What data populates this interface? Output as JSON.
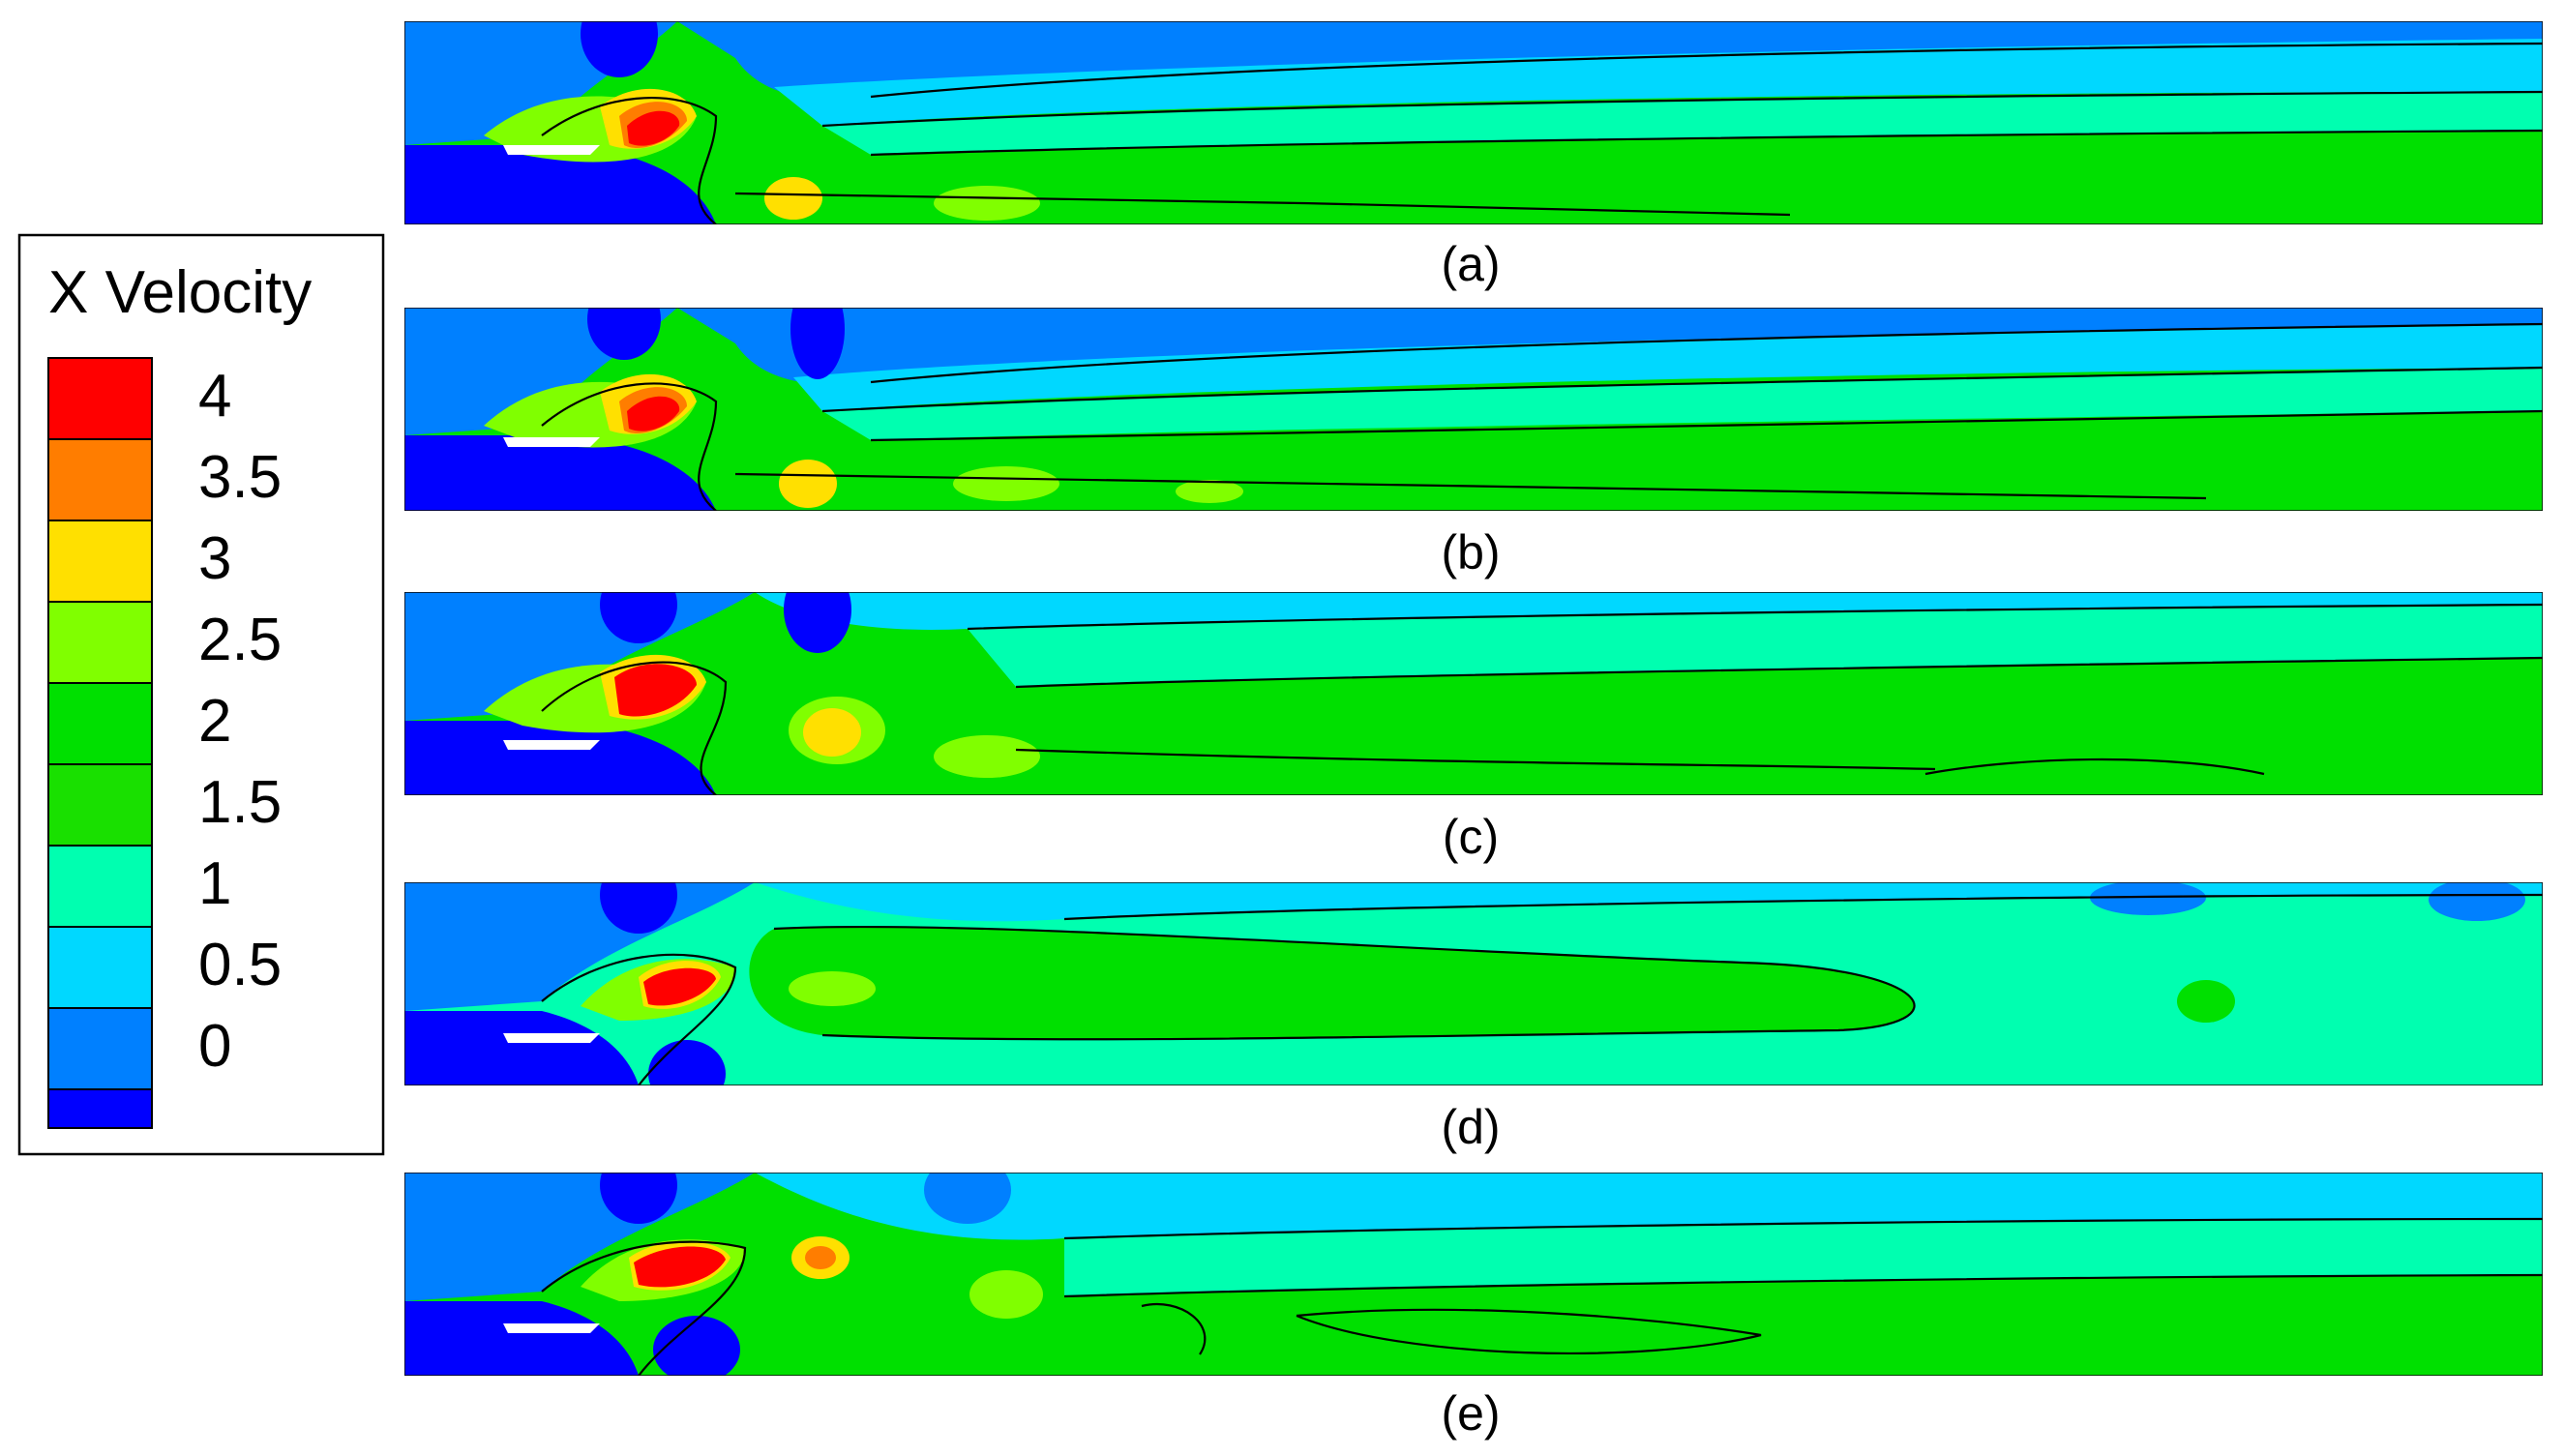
{
  "chart_data": {
    "type": "heatmap",
    "variable": "X Velocity",
    "legend": {
      "title": "X Velocity",
      "placement": "left",
      "levels": [
        {
          "label": "4",
          "value": 4,
          "color": "#ff0000"
        },
        {
          "label": "3.5",
          "value": 3.5,
          "color": "#ff7d00"
        },
        {
          "label": "3",
          "value": 3,
          "color": "#ffe000"
        },
        {
          "label": "2.5",
          "value": 2.5,
          "color": "#80ff00"
        },
        {
          "label": "2",
          "value": 2,
          "color": "#00e000"
        },
        {
          "label": "1.5",
          "value": 1.5,
          "color": "#19e000"
        },
        {
          "label": "1",
          "value": 1,
          "color": "#00ffb0"
        },
        {
          "label": "0.5",
          "value": 0.5,
          "color": "#00d8ff"
        },
        {
          "label": "0",
          "value": 0,
          "color": "#0080ff"
        }
      ],
      "bottom_color": "#0000ff"
    },
    "panels": [
      {
        "label": "(a)"
      },
      {
        "label": "(b)"
      },
      {
        "label": "(c)"
      },
      {
        "label": "(d)"
      },
      {
        "label": "(e)"
      }
    ]
  }
}
